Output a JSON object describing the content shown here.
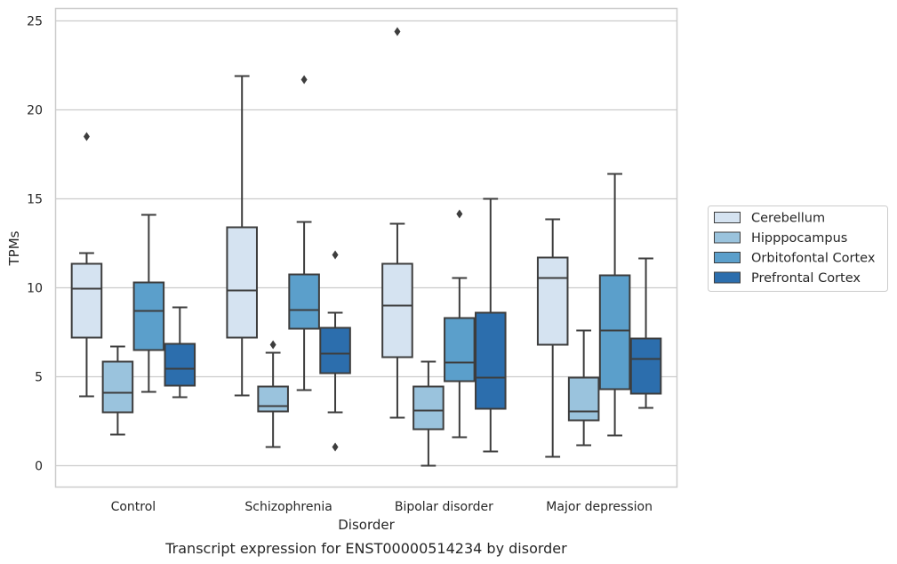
{
  "caption": "Transcript expression for ENST00000514234 by disorder",
  "chart_data": {
    "type": "box",
    "xlabel": "Disorder",
    "ylabel": "TPMs",
    "ylim": [
      -1.2,
      25.7
    ],
    "yticks": [
      0,
      5,
      10,
      15,
      20,
      25
    ],
    "ytick_labels": [
      "0",
      "5",
      "10",
      "15",
      "20",
      "25"
    ],
    "grid": "horizontal",
    "legend_position": "right",
    "categories": [
      "Control",
      "Schizophrenia",
      "Bipolar disorder",
      "Major depression"
    ],
    "series": [
      {
        "name": "Cerebellum",
        "color": "#d5e3f1",
        "boxes": [
          {
            "whisker_low": 3.9,
            "q1": 7.2,
            "median": 9.95,
            "q3": 11.35,
            "whisker_high": 11.95,
            "outliers": [
              18.5
            ]
          },
          {
            "whisker_low": 3.95,
            "q1": 7.2,
            "median": 9.85,
            "q3": 13.4,
            "whisker_high": 21.9,
            "outliers": []
          },
          {
            "whisker_low": 2.7,
            "q1": 6.1,
            "median": 9.0,
            "q3": 11.35,
            "whisker_high": 13.6,
            "outliers": [
              24.4
            ]
          },
          {
            "whisker_low": 0.5,
            "q1": 6.8,
            "median": 10.55,
            "q3": 11.7,
            "whisker_high": 13.85,
            "outliers": []
          }
        ]
      },
      {
        "name": "Hipppocampus",
        "color": "#9ac3dd",
        "boxes": [
          {
            "whisker_low": 1.75,
            "q1": 3.0,
            "median": 4.1,
            "q3": 5.85,
            "whisker_high": 6.7,
            "outliers": []
          },
          {
            "whisker_low": 1.05,
            "q1": 3.05,
            "median": 3.35,
            "q3": 4.45,
            "whisker_high": 6.35,
            "outliers": [
              6.8
            ]
          },
          {
            "whisker_low": 0.0,
            "q1": 2.05,
            "median": 3.1,
            "q3": 4.45,
            "whisker_high": 5.85,
            "outliers": []
          },
          {
            "whisker_low": 1.15,
            "q1": 2.55,
            "median": 3.05,
            "q3": 4.95,
            "whisker_high": 7.6,
            "outliers": []
          }
        ]
      },
      {
        "name": "Orbitofontal Cortex",
        "color": "#5b9fcb",
        "boxes": [
          {
            "whisker_low": 4.15,
            "q1": 6.5,
            "median": 8.7,
            "q3": 10.3,
            "whisker_high": 14.1,
            "outliers": []
          },
          {
            "whisker_low": 4.25,
            "q1": 7.7,
            "median": 8.75,
            "q3": 10.75,
            "whisker_high": 13.7,
            "outliers": [
              21.7
            ]
          },
          {
            "whisker_low": 1.6,
            "q1": 4.75,
            "median": 5.8,
            "q3": 8.3,
            "whisker_high": 10.55,
            "outliers": [
              14.15
            ]
          },
          {
            "whisker_low": 1.7,
            "q1": 4.3,
            "median": 7.6,
            "q3": 10.7,
            "whisker_high": 16.4,
            "outliers": []
          }
        ]
      },
      {
        "name": "Prefrontal Cortex",
        "color": "#2c6ead",
        "boxes": [
          {
            "whisker_low": 3.85,
            "q1": 4.5,
            "median": 5.45,
            "q3": 6.85,
            "whisker_high": 8.9,
            "outliers": []
          },
          {
            "whisker_low": 3.0,
            "q1": 5.2,
            "median": 6.3,
            "q3": 7.75,
            "whisker_high": 8.6,
            "outliers": [
              11.85,
              1.05
            ]
          },
          {
            "whisker_low": 0.8,
            "q1": 3.2,
            "median": 4.95,
            "q3": 8.6,
            "whisker_high": 15.0,
            "outliers": []
          },
          {
            "whisker_low": 3.25,
            "q1": 4.05,
            "median": 6.0,
            "q3": 7.15,
            "whisker_high": 11.65,
            "outliers": []
          }
        ]
      }
    ]
  }
}
